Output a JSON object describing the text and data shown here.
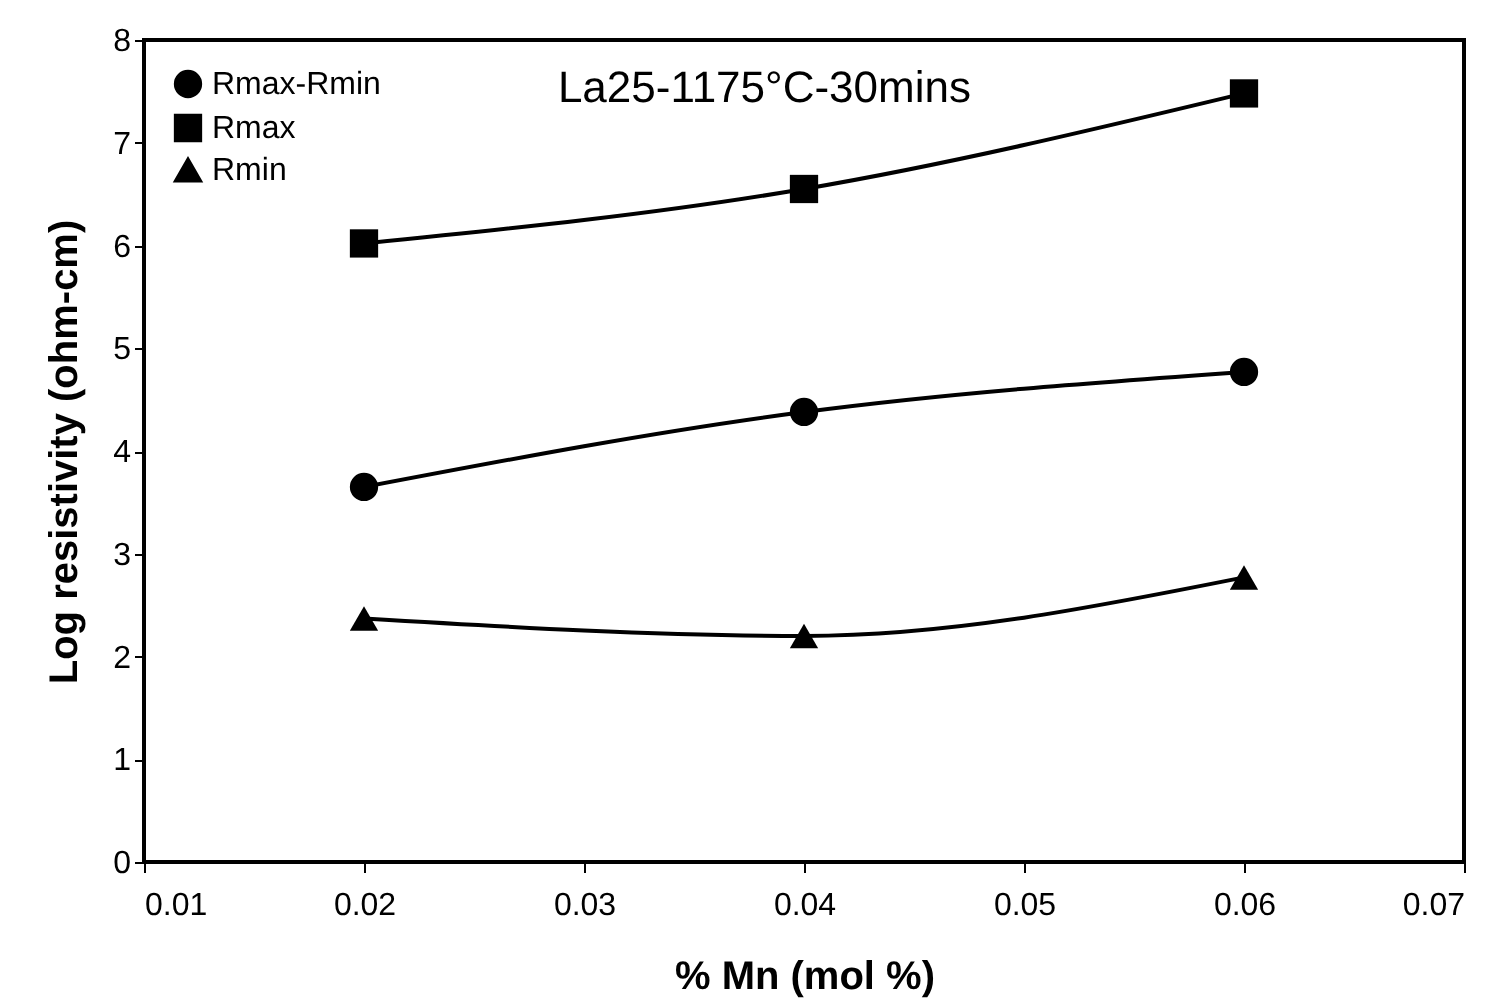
{
  "chart_data": {
    "type": "line",
    "title": "La25-1175°C-30mins",
    "xlabel": "% Mn (mol %)",
    "ylabel": "Log resistivity (ohm-cm)",
    "x": [
      0.02,
      0.04,
      0.06
    ],
    "series": [
      {
        "name": "Rmax-Rmin",
        "color": "#000000",
        "marker": "circle",
        "values": [
          3.65,
          4.38,
          4.77
        ]
      },
      {
        "name": "Rmax",
        "color": "#000000",
        "marker": "square",
        "values": [
          6.02,
          6.55,
          7.48
        ]
      },
      {
        "name": "Rmin",
        "color": "#000000",
        "marker": "triangle",
        "values": [
          2.37,
          2.2,
          2.77
        ]
      }
    ],
    "xlim": [
      0.01,
      0.07
    ],
    "xticks": [
      0.01,
      0.02,
      0.03,
      0.04,
      0.05,
      0.06,
      0.07
    ],
    "ylim": [
      0,
      8
    ],
    "yticks": [
      0,
      1,
      2,
      3,
      4,
      5,
      6,
      7,
      8
    ],
    "grid": false,
    "legend": "top left",
    "line_style": "solid"
  }
}
